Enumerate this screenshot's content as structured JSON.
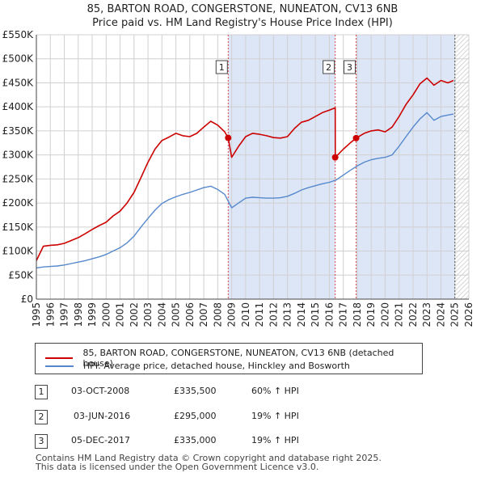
{
  "title_line1": "85, BARTON ROAD, CONGERSTONE, NUNEATON, CV13 6NB",
  "title_line2": "Price paid vs. HM Land Registry's House Price Index (HPI)",
  "chart_data": {
    "type": "line",
    "x_label": "",
    "y_label": "",
    "xlim": [
      1995,
      2026
    ],
    "ylim": [
      0,
      550000
    ],
    "y_ticks": [
      0,
      50000,
      100000,
      150000,
      200000,
      250000,
      300000,
      350000,
      400000,
      450000,
      500000,
      550000
    ],
    "y_tick_labels": [
      "£0",
      "£50K",
      "£100K",
      "£150K",
      "£200K",
      "£250K",
      "£300K",
      "£350K",
      "£400K",
      "£450K",
      "£500K",
      "£550K"
    ],
    "x_ticks": [
      1995,
      1996,
      1997,
      1998,
      1999,
      2000,
      2001,
      2002,
      2003,
      2004,
      2005,
      2006,
      2007,
      2008,
      2009,
      2010,
      2011,
      2012,
      2013,
      2014,
      2015,
      2016,
      2017,
      2018,
      2019,
      2020,
      2021,
      2022,
      2023,
      2024,
      2025,
      2026
    ],
    "grid": true,
    "colors": {
      "property": "#cc0000",
      "hpi": "#5588cc",
      "shade": "#dde6f7",
      "vline": "#cc0000"
    },
    "series": [
      {
        "name": "85, BARTON ROAD, CONGERSTONE, NUNEATON, CV13 6NB (detached house)",
        "x": [
          1995.0,
          1995.5,
          1996.0,
          1996.5,
          1997.0,
          1997.5,
          1998.0,
          1998.5,
          1999.0,
          1999.5,
          2000.0,
          2000.5,
          2001.0,
          2001.5,
          2002.0,
          2002.5,
          2003.0,
          2003.5,
          2004.0,
          2004.5,
          2005.0,
          2005.5,
          2006.0,
          2006.5,
          2007.0,
          2007.5,
          2008.0,
          2008.5,
          2008.75,
          2009.0,
          2009.5,
          2010.0,
          2010.5,
          2011.0,
          2011.5,
          2012.0,
          2012.5,
          2013.0,
          2013.5,
          2014.0,
          2014.5,
          2015.0,
          2015.5,
          2016.0,
          2016.42,
          2016.43,
          2017.0,
          2017.5,
          2017.92,
          2018.5,
          2019.0,
          2019.5,
          2020.0,
          2020.5,
          2021.0,
          2021.5,
          2022.0,
          2022.5,
          2023.0,
          2023.5,
          2024.0,
          2024.5,
          2024.9
        ],
        "values": [
          80000,
          110000,
          112000,
          113000,
          116000,
          122000,
          128000,
          136000,
          145000,
          153000,
          160000,
          173000,
          183000,
          200000,
          222000,
          253000,
          285000,
          312000,
          330000,
          337000,
          345000,
          340000,
          338000,
          345000,
          358000,
          370000,
          362000,
          348000,
          335500,
          295000,
          318000,
          338000,
          345000,
          343000,
          340000,
          336000,
          335000,
          338000,
          355000,
          368000,
          372000,
          380000,
          388000,
          393000,
          398000,
          295000,
          312000,
          325000,
          335000,
          345000,
          350000,
          352000,
          348000,
          358000,
          380000,
          405000,
          425000,
          448000,
          460000,
          445000,
          455000,
          450000,
          455000
        ]
      },
      {
        "name": "HPI: Average price, detached house, Hinckley and Bosworth",
        "x": [
          1995.0,
          1995.5,
          1996.0,
          1996.5,
          1997.0,
          1997.5,
          1998.0,
          1998.5,
          1999.0,
          1999.5,
          2000.0,
          2000.5,
          2001.0,
          2001.5,
          2002.0,
          2002.5,
          2003.0,
          2003.5,
          2004.0,
          2004.5,
          2005.0,
          2005.5,
          2006.0,
          2006.5,
          2007.0,
          2007.5,
          2008.0,
          2008.5,
          2009.0,
          2009.5,
          2010.0,
          2010.5,
          2011.0,
          2011.5,
          2012.0,
          2012.5,
          2013.0,
          2013.5,
          2014.0,
          2014.5,
          2015.0,
          2015.5,
          2016.0,
          2016.5,
          2017.0,
          2017.5,
          2018.0,
          2018.5,
          2019.0,
          2019.5,
          2020.0,
          2020.5,
          2021.0,
          2021.5,
          2022.0,
          2022.5,
          2023.0,
          2023.5,
          2024.0,
          2024.5,
          2024.9
        ],
        "values": [
          65000,
          67000,
          68000,
          69000,
          71000,
          74000,
          77000,
          80000,
          84000,
          88000,
          93000,
          100000,
          107000,
          117000,
          131000,
          150000,
          168000,
          185000,
          199000,
          207000,
          213000,
          218000,
          222000,
          227000,
          232000,
          235000,
          228000,
          218000,
          190000,
          200000,
          210000,
          212000,
          211000,
          210000,
          210000,
          211000,
          214000,
          220000,
          227000,
          232000,
          236000,
          240000,
          243000,
          248000,
          258000,
          268000,
          277000,
          285000,
          290000,
          293000,
          295000,
          300000,
          318000,
          338000,
          358000,
          375000,
          388000,
          372000,
          380000,
          383000,
          385000
        ]
      }
    ],
    "sales": [
      {
        "label": "1",
        "x": 2008.75,
        "value": 335500
      },
      {
        "label": "2",
        "x": 2016.42,
        "value": 295000
      },
      {
        "label": "3",
        "x": 2017.92,
        "value": 335000
      }
    ],
    "shaded_ranges": [
      [
        2008.75,
        2016.42
      ],
      [
        2017.92,
        2025.0
      ]
    ],
    "hatched_from": 2025.0
  },
  "legend": {
    "property_label": "85, BARTON ROAD, CONGERSTONE, NUNEATON, CV13 6NB (detached house)",
    "hpi_label": "HPI: Average price, detached house, Hinckley and Bosworth"
  },
  "transactions": [
    {
      "num": "1",
      "date": "03-OCT-2008",
      "price": "£335,500",
      "hpi": "60% ↑ HPI"
    },
    {
      "num": "2",
      "date": "03-JUN-2016",
      "price": "£295,000",
      "hpi": "19% ↑ HPI"
    },
    {
      "num": "3",
      "date": "05-DEC-2017",
      "price": "£335,000",
      "hpi": "19% ↑ HPI"
    }
  ],
  "footer_line1": "Contains HM Land Registry data © Crown copyright and database right 2025.",
  "footer_line2": "This data is licensed under the Open Government Licence v3.0."
}
